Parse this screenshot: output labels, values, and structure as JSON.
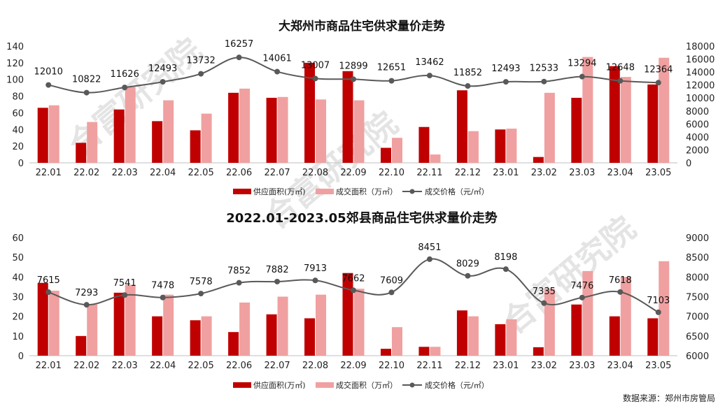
{
  "watermark_text": "合富研究院",
  "source_label": "数据来源：郑州市房管局",
  "colors": {
    "supply": "#C00000",
    "deal": "#F0A0A0",
    "price": "#595959",
    "axis": "#BFBFBF"
  },
  "chart_data": [
    {
      "type": "bar",
      "title": "大郑州市商品住宅供求量价走势",
      "categories": [
        "22.01",
        "22.02",
        "22.03",
        "22.04",
        "22.05",
        "22.06",
        "22.07",
        "22.08",
        "22.09",
        "22.10",
        "22.11",
        "22.12",
        "23.01",
        "23.02",
        "23.03",
        "23.04",
        "23.05"
      ],
      "series": [
        {
          "name": "供应面积（万㎡）",
          "type": "bar",
          "axis": "left",
          "values": [
            66,
            24,
            64,
            50,
            39,
            84,
            78,
            120,
            110,
            18,
            43,
            87,
            40,
            7,
            78,
            116,
            94
          ]
        },
        {
          "name": "成交面积（万㎡）",
          "type": "bar",
          "axis": "left",
          "values": [
            69,
            49,
            91,
            75,
            59,
            89,
            79,
            76,
            75,
            30,
            10,
            38,
            41,
            84,
            127,
            103,
            126
          ]
        },
        {
          "name": "成交价格（元/㎡）",
          "type": "line",
          "axis": "right",
          "values": [
            12010,
            10822,
            11626,
            12493,
            13732,
            16257,
            14061,
            13007,
            12899,
            12651,
            13462,
            11852,
            12493,
            12533,
            13294,
            12648,
            12364
          ]
        }
      ],
      "y_left_ticks": [
        "0",
        "20",
        "40",
        "60",
        "80",
        "100",
        "120",
        "140"
      ],
      "y_right_ticks": [
        "0",
        "2000",
        "4000",
        "6000",
        "8000",
        "10000",
        "12000",
        "14000",
        "16000",
        "18000"
      ],
      "ylim_left": [
        0,
        140
      ],
      "ylim_right": [
        0,
        18000
      ],
      "legend": [
        "供应面积(万㎡)",
        "成交面积（万㎡）",
        "成交价格（元/㎡）"
      ]
    },
    {
      "type": "bar",
      "title": "2022.01-2023.05郊县商品住宅供求量价走势",
      "categories": [
        "22.01",
        "22.02",
        "22.03",
        "22.04",
        "22.05",
        "22.06",
        "22.07",
        "22.08",
        "22.09",
        "22.10",
        "22.11",
        "22.12",
        "23.01",
        "23.02",
        "23.03",
        "23.04",
        "23.05"
      ],
      "series": [
        {
          "name": "供应面积（万㎡）",
          "type": "bar",
          "axis": "left",
          "values": [
            37,
            10,
            32,
            20,
            18,
            12,
            21,
            19,
            42,
            3.5,
            4.5,
            23,
            16,
            4.3,
            26,
            20,
            19
          ]
        },
        {
          "name": "成交面积（万㎡）",
          "type": "bar",
          "axis": "left",
          "values": [
            33,
            26,
            36,
            31,
            20,
            27,
            30,
            31,
            34,
            14.5,
            4.5,
            20,
            18.5,
            34,
            43,
            40,
            48
          ]
        },
        {
          "name": "成交价格（元/㎡）",
          "type": "line",
          "axis": "right",
          "values": [
            7615,
            7293,
            7541,
            7478,
            7578,
            7852,
            7882,
            7913,
            7662,
            7609,
            8451,
            8029,
            8198,
            7335,
            7476,
            7618,
            7103
          ]
        }
      ],
      "y_left_ticks": [
        "0",
        "10",
        "20",
        "30",
        "40",
        "50",
        "60"
      ],
      "y_right_ticks": [
        "6000",
        "6500",
        "7000",
        "7500",
        "8000",
        "8500",
        "9000"
      ],
      "ylim_left": [
        0,
        60
      ],
      "ylim_right": [
        6000,
        9000
      ],
      "legend": [
        "供应面积(万㎡)",
        "成交面积（万㎡）",
        "成交价格（元/㎡）"
      ]
    }
  ]
}
